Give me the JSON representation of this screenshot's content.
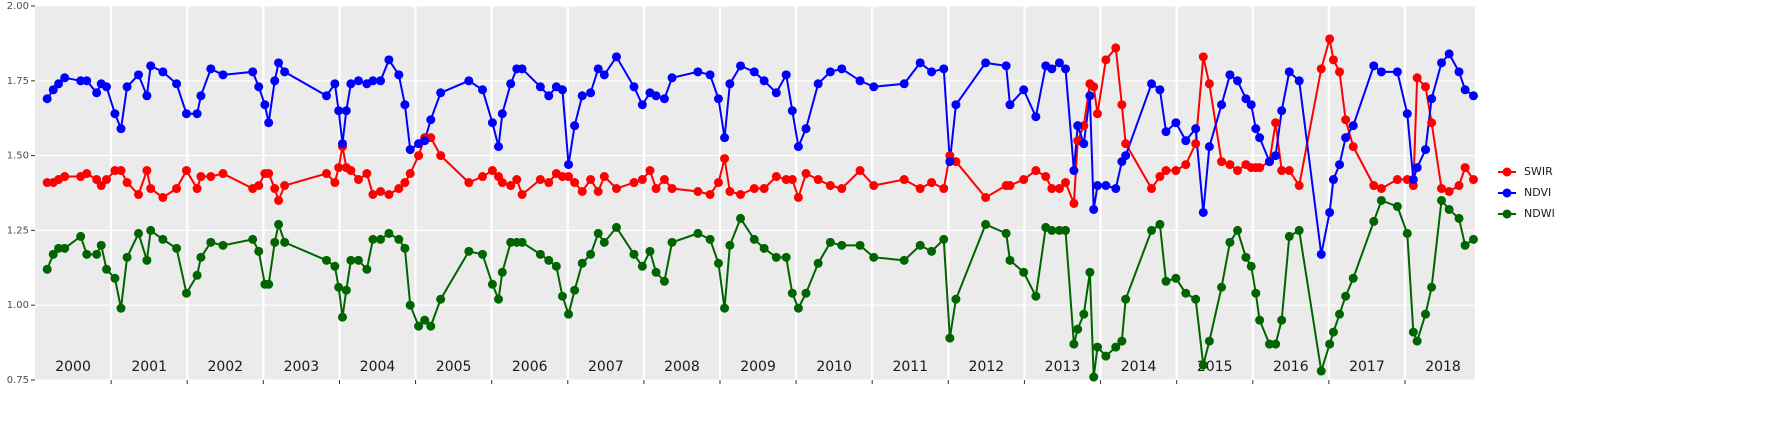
{
  "chart_data": {
    "type": "line",
    "x": [
      2000.16,
      2000.24,
      2000.31,
      2000.39,
      2000.6,
      2000.68,
      2000.81,
      2000.87,
      2000.94,
      2001.05,
      2001.13,
      2001.21,
      2001.36,
      2001.47,
      2001.52,
      2001.68,
      2001.86,
      2001.99,
      2002.13,
      2002.18,
      2002.31,
      2002.47,
      2002.86,
      2002.94,
      2003.02,
      2003.07,
      2003.15,
      2003.2,
      2003.28,
      2003.83,
      2003.94,
      2003.99,
      2004.04,
      2004.09,
      2004.15,
      2004.25,
      2004.36,
      2004.44,
      2004.54,
      2004.65,
      2004.78,
      2004.86,
      2004.93,
      2005.04,
      2005.12,
      2005.2,
      2005.33,
      2005.7,
      2005.88,
      2006.01,
      2006.09,
      2006.14,
      2006.25,
      2006.33,
      2006.4,
      2006.64,
      2006.75,
      2006.85,
      2006.93,
      2007.01,
      2007.09,
      2007.19,
      2007.3,
      2007.4,
      2007.48,
      2007.64,
      2007.87,
      2007.98,
      2008.08,
      2008.16,
      2008.27,
      2008.37,
      2008.71,
      2008.87,
      2008.98,
      2009.06,
      2009.13,
      2009.27,
      2009.45,
      2009.58,
      2009.74,
      2009.87,
      2009.95,
      2010.03,
      2010.13,
      2010.29,
      2010.45,
      2010.6,
      2010.84,
      2011.02,
      2011.42,
      2011.63,
      2011.78,
      2011.94,
      2012.02,
      2012.1,
      2012.49,
      2012.76,
      2012.81,
      2012.99,
      2013.15,
      2013.28,
      2013.36,
      2013.46,
      2013.54,
      2013.65,
      2013.7,
      2013.78,
      2013.86,
      2013.91,
      2013.96,
      2014.07,
      2014.2,
      2014.28,
      2014.33,
      2014.67,
      2014.78,
      2014.86,
      2014.99,
      2015.12,
      2015.25,
      2015.35,
      2015.43,
      2015.59,
      2015.7,
      2015.8,
      2015.91,
      2015.98,
      2016.04,
      2016.09,
      2016.22,
      2016.3,
      2016.38,
      2016.48,
      2016.61,
      2016.9,
      2017.01,
      2017.06,
      2017.14,
      2017.22,
      2017.32,
      2017.59,
      2017.69,
      2017.9,
      2018.03,
      2018.11,
      2018.16,
      2018.27,
      2018.35,
      2018.48,
      2018.58,
      2018.71,
      2018.79,
      2018.9
    ],
    "series": [
      {
        "name": "SWIR",
        "color": "#ff0000",
        "values": [
          1.41,
          1.41,
          1.42,
          1.43,
          1.43,
          1.44,
          1.42,
          1.4,
          1.42,
          1.45,
          1.45,
          1.41,
          1.37,
          1.45,
          1.39,
          1.36,
          1.39,
          1.45,
          1.39,
          1.43,
          1.43,
          1.44,
          1.39,
          1.4,
          1.44,
          1.44,
          1.39,
          1.35,
          1.4,
          1.44,
          1.41,
          1.46,
          1.53,
          1.46,
          1.45,
          1.42,
          1.44,
          1.37,
          1.38,
          1.37,
          1.39,
          1.41,
          1.44,
          1.5,
          1.56,
          1.56,
          1.5,
          1.41,
          1.43,
          1.45,
          1.43,
          1.41,
          1.4,
          1.42,
          1.37,
          1.42,
          1.41,
          1.44,
          1.43,
          1.43,
          1.41,
          1.38,
          1.42,
          1.38,
          1.43,
          1.39,
          1.41,
          1.42,
          1.45,
          1.39,
          1.42,
          1.39,
          1.38,
          1.37,
          1.41,
          1.49,
          1.38,
          1.37,
          1.39,
          1.39,
          1.43,
          1.42,
          1.42,
          1.36,
          1.44,
          1.42,
          1.4,
          1.39,
          1.45,
          1.4,
          1.42,
          1.39,
          1.41,
          1.39,
          1.5,
          1.48,
          1.36,
          1.4,
          1.4,
          1.42,
          1.45,
          1.43,
          1.39,
          1.39,
          1.41,
          1.34,
          1.55,
          1.6,
          1.74,
          1.73,
          1.64,
          1.82,
          1.86,
          1.67,
          1.54,
          1.39,
          1.43,
          1.45,
          1.45,
          1.47,
          1.54,
          1.83,
          1.74,
          1.48,
          1.47,
          1.45,
          1.47,
          1.46,
          1.46,
          1.46,
          1.48,
          1.61,
          1.45,
          1.45,
          1.4,
          1.79,
          1.89,
          1.82,
          1.78,
          1.62,
          1.53,
          1.4,
          1.39,
          1.42,
          1.42,
          1.4,
          1.76,
          1.73,
          1.61,
          1.39,
          1.38,
          1.4,
          1.46,
          1.42
        ]
      },
      {
        "name": "NDVI",
        "color": "#0000ff",
        "values": [
          1.69,
          1.72,
          1.74,
          1.76,
          1.75,
          1.75,
          1.71,
          1.74,
          1.73,
          1.64,
          1.59,
          1.73,
          1.77,
          1.7,
          1.8,
          1.78,
          1.74,
          1.64,
          1.64,
          1.7,
          1.79,
          1.77,
          1.78,
          1.73,
          1.67,
          1.61,
          1.75,
          1.81,
          1.78,
          1.7,
          1.74,
          1.65,
          1.54,
          1.65,
          1.74,
          1.75,
          1.74,
          1.75,
          1.75,
          1.82,
          1.77,
          1.67,
          1.52,
          1.54,
          1.55,
          1.62,
          1.71,
          1.75,
          1.72,
          1.61,
          1.53,
          1.64,
          1.74,
          1.79,
          1.79,
          1.73,
          1.7,
          1.73,
          1.72,
          1.47,
          1.6,
          1.7,
          1.71,
          1.79,
          1.77,
          1.83,
          1.73,
          1.67,
          1.71,
          1.7,
          1.69,
          1.76,
          1.78,
          1.77,
          1.69,
          1.56,
          1.74,
          1.8,
          1.78,
          1.75,
          1.71,
          1.77,
          1.65,
          1.53,
          1.59,
          1.74,
          1.78,
          1.79,
          1.75,
          1.73,
          1.74,
          1.81,
          1.78,
          1.79,
          1.48,
          1.67,
          1.81,
          1.8,
          1.67,
          1.72,
          1.63,
          1.8,
          1.79,
          1.81,
          1.79,
          1.45,
          1.6,
          1.54,
          1.7,
          1.32,
          1.4,
          1.4,
          1.39,
          1.48,
          1.5,
          1.74,
          1.72,
          1.58,
          1.61,
          1.55,
          1.59,
          1.31,
          1.53,
          1.67,
          1.77,
          1.75,
          1.69,
          1.67,
          1.59,
          1.56,
          1.48,
          1.5,
          1.65,
          1.78,
          1.75,
          1.17,
          1.31,
          1.42,
          1.47,
          1.56,
          1.6,
          1.8,
          1.78,
          1.78,
          1.64,
          1.42,
          1.46,
          1.52,
          1.69,
          1.81,
          1.84,
          1.78,
          1.72,
          1.7
        ]
      },
      {
        "name": "NDWI",
        "color": "#006400",
        "values": [
          1.12,
          1.17,
          1.19,
          1.19,
          1.23,
          1.17,
          1.17,
          1.2,
          1.12,
          1.09,
          0.99,
          1.16,
          1.24,
          1.15,
          1.25,
          1.22,
          1.19,
          1.04,
          1.1,
          1.16,
          1.21,
          1.2,
          1.22,
          1.18,
          1.07,
          1.07,
          1.21,
          1.27,
          1.21,
          1.15,
          1.13,
          1.06,
          0.96,
          1.05,
          1.15,
          1.15,
          1.12,
          1.22,
          1.22,
          1.24,
          1.22,
          1.19,
          1.0,
          0.93,
          0.95,
          0.93,
          1.02,
          1.18,
          1.17,
          1.07,
          1.02,
          1.11,
          1.21,
          1.21,
          1.21,
          1.17,
          1.15,
          1.13,
          1.03,
          0.97,
          1.05,
          1.14,
          1.17,
          1.24,
          1.21,
          1.26,
          1.17,
          1.13,
          1.18,
          1.11,
          1.08,
          1.21,
          1.24,
          1.22,
          1.14,
          0.99,
          1.2,
          1.29,
          1.22,
          1.19,
          1.16,
          1.16,
          1.04,
          0.99,
          1.04,
          1.14,
          1.21,
          1.2,
          1.2,
          1.16,
          1.15,
          1.2,
          1.18,
          1.22,
          0.89,
          1.02,
          1.27,
          1.24,
          1.15,
          1.11,
          1.03,
          1.26,
          1.25,
          1.25,
          1.25,
          0.87,
          0.92,
          0.97,
          1.11,
          0.76,
          0.86,
          0.83,
          0.86,
          0.88,
          1.02,
          1.25,
          1.27,
          1.08,
          1.09,
          1.04,
          1.02,
          0.8,
          0.88,
          1.06,
          1.21,
          1.25,
          1.16,
          1.13,
          1.04,
          0.95,
          0.87,
          0.87,
          0.95,
          1.23,
          1.25,
          0.78,
          0.87,
          0.91,
          0.97,
          1.03,
          1.09,
          1.28,
          1.35,
          1.33,
          1.24,
          0.91,
          0.88,
          0.97,
          1.06,
          1.35,
          1.32,
          1.29,
          1.2,
          1.22
        ]
      }
    ],
    "xlim": [
      2000,
      2018.92
    ],
    "xticks": [
      2001,
      2002,
      2003,
      2004,
      2005,
      2006,
      2007,
      2008,
      2009,
      2010,
      2011,
      2012,
      2013,
      2014,
      2015,
      2016,
      2017,
      2018
    ],
    "year_labels": [
      "2000",
      "2001",
      "2002",
      "2003",
      "2004",
      "2005",
      "2006",
      "2007",
      "2008",
      "2009",
      "2010",
      "2011",
      "2012",
      "2013",
      "2014",
      "2015",
      "2016",
      "2017",
      "2018"
    ],
    "ylim": [
      0.75,
      2.0
    ],
    "yticks": [
      0.75,
      {
        "value": 1.0,
        "label": "1.00"
      },
      1.25,
      {
        "value": 1.5,
        "label": "1.50"
      },
      1.75,
      {
        "value": 2.0,
        "label": "2.00"
      }
    ],
    "grid": true,
    "legend": "right"
  }
}
